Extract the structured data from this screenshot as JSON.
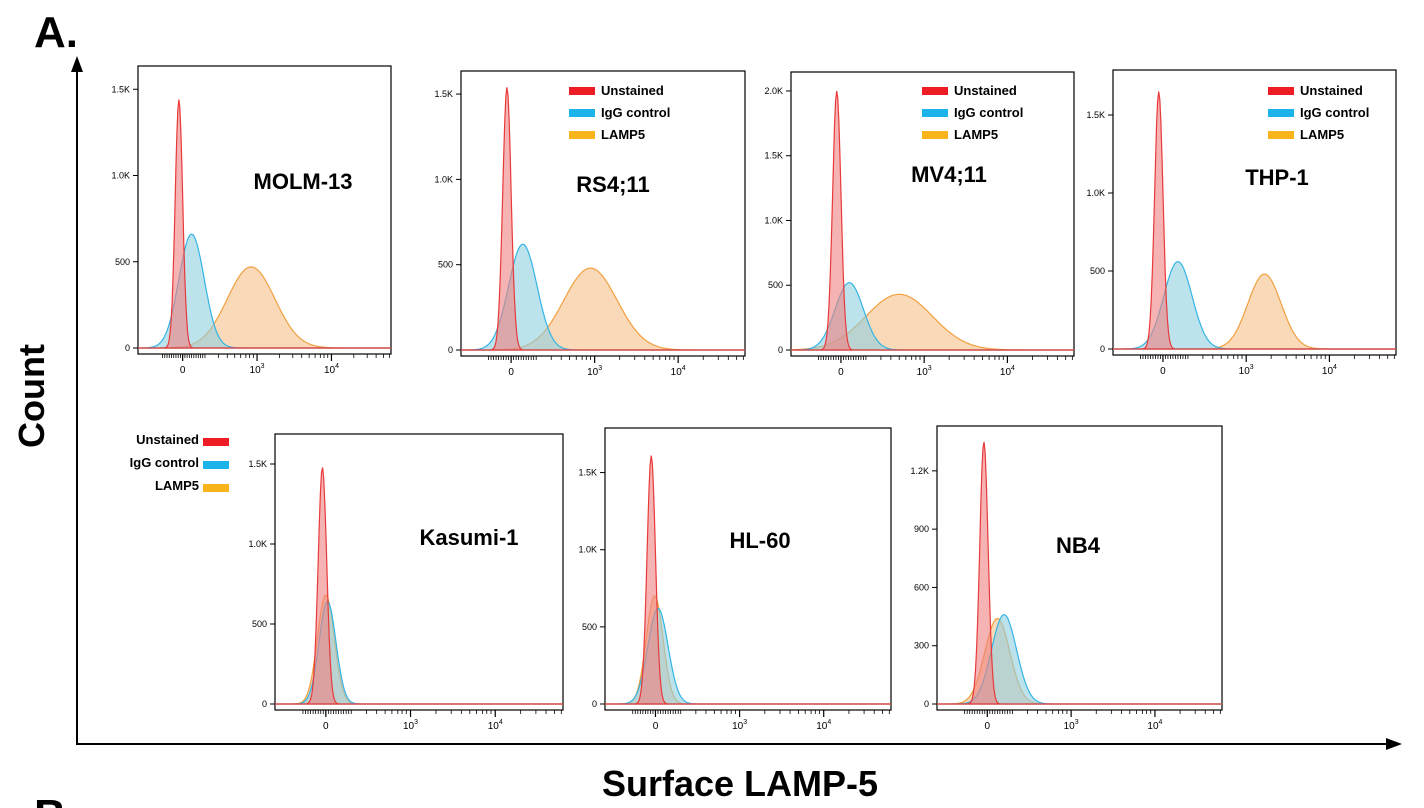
{
  "figure": {
    "panel_letter": "A.",
    "next_panel_letter": "B",
    "y_axis_label": "Count",
    "x_axis_label": "Surface LAMP-5"
  },
  "colors": {
    "unstained_fill": "#f08080",
    "unstained_stroke": "#e83a3a",
    "igg_fill": "#8fcfe0",
    "igg_stroke": "#35b4e4",
    "lamp5_fill": "#f6c088",
    "lamp5_stroke": "#f0a040",
    "legend_unstained": "#ee1c25",
    "legend_igg": "#1cb4e8",
    "legend_lamp5": "#f8b418"
  },
  "legend_labels": [
    "Unstained",
    "IgG control",
    "LAMP5"
  ],
  "x_ticks": [
    "0",
    "10^3",
    "10^4"
  ],
  "chart_data": [
    {
      "type": "area",
      "title": "MOLM-13",
      "show_legend": false,
      "yticks": [
        0,
        500,
        1000,
        1500
      ],
      "ytick_labels": [
        "0",
        "500",
        "1.0K",
        "1.5K"
      ],
      "ylim": [
        0,
        1600
      ],
      "series": [
        {
          "name": "Unstained",
          "peaks": [
            {
              "x": -0.05,
              "h": 1440,
              "w": 0.05
            }
          ]
        },
        {
          "name": "IgG control",
          "peaks": [
            {
              "x": 0.12,
              "h": 660,
              "w": 0.17
            }
          ]
        },
        {
          "name": "LAMP5",
          "peaks": [
            {
              "x": 0.92,
              "h": 470,
              "w": 0.32
            }
          ]
        }
      ]
    },
    {
      "type": "area",
      "title": "RS4;11",
      "show_legend": true,
      "yticks": [
        0,
        500,
        1000,
        1500
      ],
      "ytick_labels": [
        "0",
        "500",
        "1.0K",
        "1.5K"
      ],
      "ylim": [
        0,
        1600
      ],
      "series": [
        {
          "name": "Unstained",
          "peaks": [
            {
              "x": -0.05,
              "h": 1540,
              "w": 0.05
            }
          ]
        },
        {
          "name": "IgG control",
          "peaks": [
            {
              "x": 0.14,
              "h": 620,
              "w": 0.17
            }
          ]
        },
        {
          "name": "LAMP5",
          "peaks": [
            {
              "x": 0.95,
              "h": 480,
              "w": 0.32
            }
          ]
        }
      ]
    },
    {
      "type": "area",
      "title": "MV4;11",
      "show_legend": true,
      "yticks": [
        0,
        500,
        1000,
        1500,
        2000
      ],
      "ytick_labels": [
        "0",
        "500",
        "1.0K",
        "1.5K",
        "2.0K"
      ],
      "ylim": [
        0,
        2100
      ],
      "series": [
        {
          "name": "Unstained",
          "peaks": [
            {
              "x": -0.05,
              "h": 2000,
              "w": 0.05
            }
          ]
        },
        {
          "name": "IgG control",
          "peaks": [
            {
              "x": 0.1,
              "h": 520,
              "w": 0.17
            }
          ]
        },
        {
          "name": "LAMP5",
          "peaks": [
            {
              "x": 0.7,
              "h": 430,
              "w": 0.4
            }
          ]
        }
      ]
    },
    {
      "type": "area",
      "title": "THP-1",
      "show_legend": true,
      "yticks": [
        0,
        500,
        1000,
        1500
      ],
      "ytick_labels": [
        "0",
        "500",
        "1.0K",
        "1.5K"
      ],
      "ylim": [
        0,
        1750
      ],
      "series": [
        {
          "name": "Unstained",
          "peaks": [
            {
              "x": -0.05,
              "h": 1650,
              "w": 0.05
            }
          ]
        },
        {
          "name": "IgG control",
          "peaks": [
            {
              "x": 0.18,
              "h": 560,
              "w": 0.17
            }
          ]
        },
        {
          "name": "LAMP5",
          "peaks": [
            {
              "x": 1.22,
              "h": 480,
              "w": 0.2
            }
          ]
        }
      ]
    },
    {
      "type": "area",
      "title": "Kasumi-1",
      "show_legend": false,
      "yticks": [
        0,
        500,
        1000,
        1500
      ],
      "ytick_labels": [
        "0",
        "500",
        "1.0K",
        "1.5K"
      ],
      "ylim": [
        0,
        1650
      ],
      "series": [
        {
          "name": "Unstained",
          "peaks": [
            {
              "x": -0.04,
              "h": 1480,
              "w": 0.05
            }
          ]
        },
        {
          "name": "IgG control",
          "peaks": [
            {
              "x": 0.02,
              "h": 640,
              "w": 0.1
            }
          ]
        },
        {
          "name": "LAMP5",
          "peaks": [
            {
              "x": 0.0,
              "h": 680,
              "w": 0.1
            }
          ]
        }
      ]
    },
    {
      "type": "area",
      "title": "HL-60",
      "show_legend": false,
      "yticks": [
        0,
        500,
        1000,
        1500
      ],
      "ytick_labels": [
        "0",
        "500",
        "1.0K",
        "1.5K"
      ],
      "ylim": [
        0,
        1750
      ],
      "series": [
        {
          "name": "Unstained",
          "peaks": [
            {
              "x": -0.05,
              "h": 1610,
              "w": 0.05
            }
          ]
        },
        {
          "name": "IgG control",
          "peaks": [
            {
              "x": 0.03,
              "h": 620,
              "w": 0.12
            }
          ]
        },
        {
          "name": "LAMP5",
          "peaks": [
            {
              "x": -0.01,
              "h": 700,
              "w": 0.1
            }
          ]
        }
      ]
    },
    {
      "type": "area",
      "title": "NB4",
      "show_legend": false,
      "yticks": [
        0,
        300,
        600,
        900,
        1200
      ],
      "ytick_labels": [
        "0",
        "300",
        "600",
        "900",
        "1.2K"
      ],
      "ylim": [
        0,
        1400
      ],
      "series": [
        {
          "name": "Unstained",
          "peaks": [
            {
              "x": -0.04,
              "h": 1350,
              "w": 0.05
            }
          ]
        },
        {
          "name": "IgG control",
          "peaks": [
            {
              "x": 0.2,
              "h": 460,
              "w": 0.15
            }
          ]
        },
        {
          "name": "LAMP5",
          "peaks": [
            {
              "x": 0.12,
              "h": 440,
              "w": 0.15
            }
          ]
        }
      ]
    }
  ]
}
